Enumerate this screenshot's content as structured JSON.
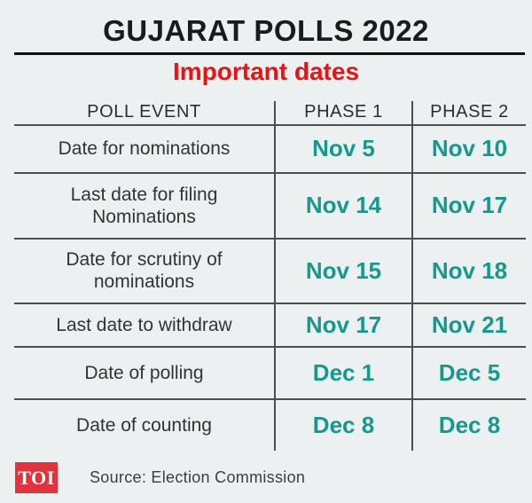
{
  "header": {
    "title": "GUJARAT POLLS 2022",
    "subtitle": "Important dates"
  },
  "table": {
    "columns": {
      "event": "POLL EVENT",
      "phase1": "PHASE 1",
      "phase2": "PHASE 2"
    },
    "rows": [
      {
        "event": "Date for nominations",
        "phase1": "Nov 5",
        "phase2": "Nov 10"
      },
      {
        "event": "Last date for filing\nNominations",
        "phase1": "Nov 14",
        "phase2": "Nov 17"
      },
      {
        "event": "Date for scrutiny of\nnominations",
        "phase1": "Nov 15",
        "phase2": "Nov 18"
      },
      {
        "event": "Last date to  withdraw",
        "phase1": "Nov 17",
        "phase2": "Nov 21"
      },
      {
        "event": "Date of polling",
        "phase1": "Dec 1",
        "phase2": "Dec 5"
      },
      {
        "event": "Date of counting",
        "phase1": "Dec 8",
        "phase2": "Dec 8"
      }
    ]
  },
  "footer": {
    "logo_text": "TOI",
    "source": "Source: Election Commission"
  },
  "colors": {
    "background": "#edf0f1",
    "title_text": "#1b1b1b",
    "subtitle_red": "#ee1111",
    "date_teal": "#119a8d",
    "grid_line": "#4d4d4d",
    "logo_red": "#e2333c"
  },
  "chart_data": {
    "type": "table",
    "title": "GUJARAT POLLS 2022",
    "subtitle": "Important dates",
    "columns": [
      "POLL EVENT",
      "PHASE 1",
      "PHASE 2"
    ],
    "rows": [
      [
        "Date for nominations",
        "Nov 5",
        "Nov 10"
      ],
      [
        "Last date for filing Nominations",
        "Nov 14",
        "Nov 17"
      ],
      [
        "Date for scrutiny of nominations",
        "Nov 15",
        "Nov 18"
      ],
      [
        "Last date to withdraw",
        "Nov 17",
        "Nov 21"
      ],
      [
        "Date of polling",
        "Dec 1",
        "Dec 5"
      ],
      [
        "Date of counting",
        "Dec 8",
        "Dec 8"
      ]
    ],
    "source": "Source: Election Commission",
    "legend_position": "none",
    "grid": true
  }
}
